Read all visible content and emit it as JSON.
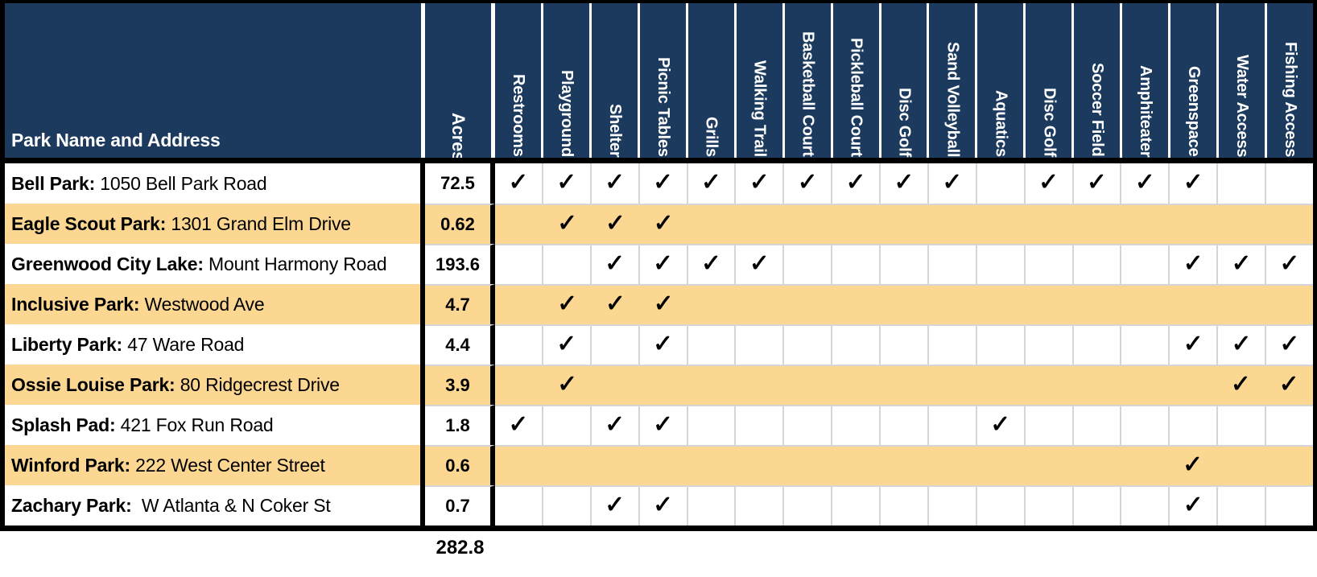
{
  "table": {
    "name_header": "Park Name and Address",
    "acres_header": "Acres",
    "amenity_headers": [
      "Restrooms",
      "Playground",
      "Shelter",
      "Picnic Tables",
      "Grills",
      "Walking Trail",
      "Basketball Court",
      "Pickleball Court",
      "Disc Golf",
      "Sand Volleyball",
      "Aquatics",
      "Disc Golf",
      "Soccer Field",
      "Amphiteater",
      "Greenspace",
      "Water Access",
      "Fishing Access"
    ],
    "check_glyph": "✓",
    "rows": [
      {
        "name": "Bell Park:",
        "address": " 1050 Bell Park Road",
        "acres": "72.5",
        "checks": [
          1,
          2,
          3,
          4,
          5,
          6,
          7,
          8,
          9,
          10,
          12,
          13,
          14,
          15
        ]
      },
      {
        "name": "Eagle Scout Park:",
        "address": " 1301 Grand Elm Drive",
        "acres": "0.62",
        "checks": [
          2,
          3,
          4
        ]
      },
      {
        "name": "Greenwood City Lake:",
        "address": " Mount Harmony Road",
        "acres": "193.6",
        "checks": [
          3,
          4,
          5,
          6,
          15,
          16,
          17
        ]
      },
      {
        "name": "Inclusive Park:",
        "address": " Westwood Ave",
        "acres": "4.7",
        "checks": [
          2,
          3,
          4
        ]
      },
      {
        "name": "Liberty Park:",
        "address": " 47 Ware Road",
        "acres": "4.4",
        "checks": [
          2,
          4,
          15,
          16,
          17
        ]
      },
      {
        "name": "Ossie Louise Park:",
        "address": " 80 Ridgecrest Drive",
        "acres": "3.9",
        "checks": [
          2,
          16,
          17
        ]
      },
      {
        "name": "Splash Pad:",
        "address": " 421 Fox Run Road",
        "acres": "1.8",
        "checks": [
          1,
          3,
          4,
          11
        ]
      },
      {
        "name": "Winford Park:",
        "address": " 222 West Center Street",
        "acres": "0.6",
        "checks": [
          15
        ]
      },
      {
        "name": "Zachary Park:",
        "address": "  W Atlanta & N Coker St",
        "acres": "0.7",
        "checks": [
          3,
          4,
          15
        ]
      }
    ],
    "acres_total": "282.8"
  },
  "colors": {
    "header_navy": "#1b3a5e",
    "row_orange": "#fcd791",
    "gridline": "#d5d5d5",
    "border_black": "#000000",
    "header_text": "#ffffff"
  }
}
